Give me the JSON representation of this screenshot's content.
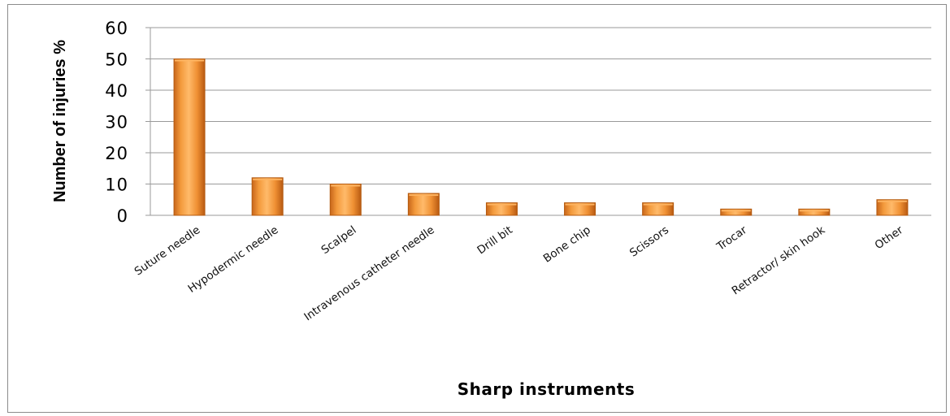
{
  "chart_data": {
    "type": "bar",
    "xlabel": "Sharp instruments",
    "ylabel": "Number of injuries %",
    "ylim": [
      0,
      60
    ],
    "yticks": [
      0,
      10,
      20,
      30,
      40,
      50,
      60
    ],
    "categories": [
      "Suture needle",
      "Hypodermic needle",
      "Scalpel",
      "Intravenous catheter needle",
      "Drill bit",
      "Bone chip",
      "Scissors",
      "Trocar",
      "Retractor/ skin hook",
      "Other"
    ],
    "values": [
      50,
      12,
      10,
      7,
      4,
      4,
      4,
      2,
      2,
      5
    ],
    "grid": true,
    "legend": "none",
    "colors": {
      "bar": "#e98a2b",
      "bar_highlight": "#fdb360",
      "bar_edge": "#b45a0f",
      "grid": "#9a9a9a"
    }
  }
}
